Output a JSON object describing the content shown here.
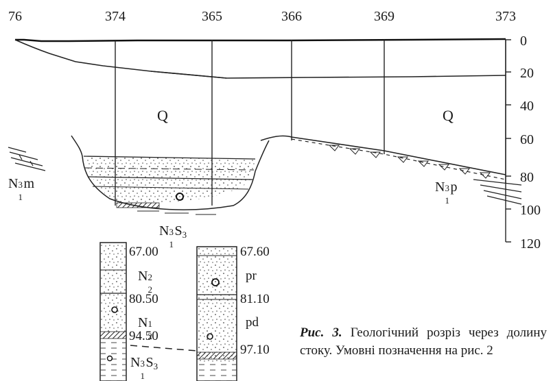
{
  "well_numbers": [
    "76",
    "374",
    "365",
    "366",
    "369",
    "373"
  ],
  "depth_scale": [
    "0",
    "20",
    "40",
    "60",
    "80",
    "100",
    "120"
  ],
  "units": {
    "q_left": "Q",
    "q_right": "Q",
    "n1m": {
      "base": "N",
      "sub": "1",
      "sup": "3",
      "suffix": "m"
    },
    "n1p": {
      "base": "N",
      "sub": "1",
      "sup": "3",
      "suffix": "p"
    },
    "n1s3_section": {
      "base": "N",
      "sub": "1",
      "sup": "3",
      "suffix": "S",
      "suffix_sub": "3"
    }
  },
  "column_left": {
    "depths": [
      "67.00",
      "80.50",
      "94.50"
    ],
    "layers": [
      {
        "base": "N",
        "sub": "2",
        "sup": "2"
      },
      {
        "base": "N",
        "sub": "2",
        "sup": "1"
      },
      {
        "base": "N",
        "sub": "1",
        "sup": "3",
        "suffix": "S",
        "suffix_sub": "3"
      }
    ]
  },
  "column_right": {
    "depths": [
      "67.60",
      "81.10",
      "97.10"
    ],
    "layers": [
      "pr",
      "pd"
    ]
  },
  "caption": {
    "figure": "Рис. 3.",
    "text": " Геологічний розріз через долину стоку. Умовні позначення на рис. 2"
  }
}
